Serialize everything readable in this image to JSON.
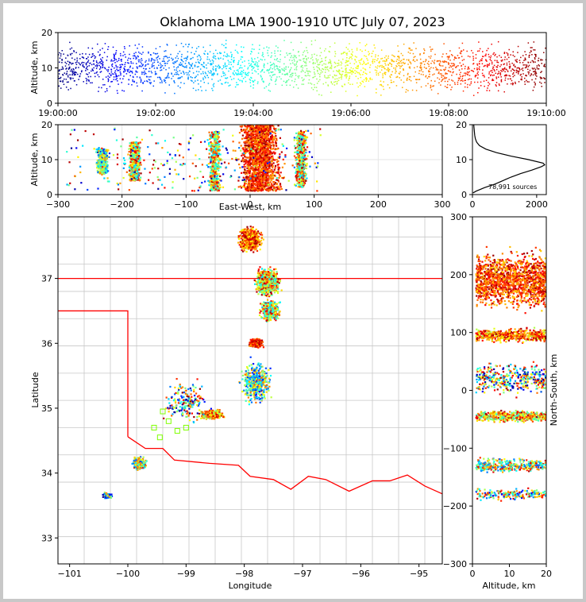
{
  "chart_data": [
    {
      "type": "scatter",
      "panel": "altitude-time",
      "title": "Oklahoma LMA 1900-1910 UTC July 07, 2023",
      "ylabel": "Altitude, km",
      "ylim": [
        0,
        20
      ],
      "xlim": [
        "19:00:00",
        "19:10:00"
      ],
      "xticks": [
        "19:00:00",
        "19:02:00",
        "19:04:00",
        "19:06:00",
        "19:08:00",
        "19:10:00"
      ],
      "yticks": [
        "0",
        "10",
        "20"
      ],
      "color_by": "time",
      "colormap": [
        "#00007f",
        "#0000ff",
        "#007fff",
        "#00ffff",
        "#7fff7f",
        "#ffff00",
        "#ff7f00",
        "#ff0000",
        "#7f0000"
      ]
    },
    {
      "type": "scatter",
      "panel": "east-west-altitude",
      "xlabel": "East-West, km",
      "ylabel": "Altitude, km",
      "xlim": [
        -300,
        300
      ],
      "ylim": [
        0,
        20
      ],
      "xticks": [
        "−300",
        "−200",
        "−100",
        "0",
        "100",
        "200",
        "300"
      ],
      "yticks": [
        "0",
        "10",
        "20"
      ],
      "grid": true,
      "clusters": [
        {
          "x": -230,
          "alt_range": [
            6,
            13
          ],
          "tone": "early"
        },
        {
          "x": -180,
          "alt_range": [
            4,
            15
          ],
          "tone": "mixed"
        },
        {
          "x": -55,
          "alt_range": [
            1,
            18
          ],
          "tone": "mixed"
        },
        {
          "x": 15,
          "alt_range": [
            1,
            20
          ],
          "tone": "late"
        },
        {
          "x": 80,
          "alt_range": [
            2,
            18
          ],
          "tone": "mixed"
        }
      ]
    },
    {
      "type": "line",
      "panel": "altitude-histogram",
      "xlim": [
        0,
        2300
      ],
      "ylim": [
        0,
        20
      ],
      "xticks": [
        "0",
        "2000"
      ],
      "yticks": [
        "0",
        "10",
        "20"
      ],
      "annotation": "78,991 sources",
      "profile": [
        {
          "alt": 0.5,
          "count": 20
        },
        {
          "alt": 1,
          "count": 120
        },
        {
          "alt": 2,
          "count": 380
        },
        {
          "alt": 3,
          "count": 700
        },
        {
          "alt": 4,
          "count": 950
        },
        {
          "alt": 5,
          "count": 1200
        },
        {
          "alt": 6,
          "count": 1500
        },
        {
          "alt": 7,
          "count": 1850
        },
        {
          "alt": 8,
          "count": 2150
        },
        {
          "alt": 8.5,
          "count": 2250
        },
        {
          "alt": 9,
          "count": 2200
        },
        {
          "alt": 10,
          "count": 1750
        },
        {
          "alt": 11,
          "count": 1200
        },
        {
          "alt": 12,
          "count": 750
        },
        {
          "alt": 13,
          "count": 420
        },
        {
          "alt": 14,
          "count": 220
        },
        {
          "alt": 15,
          "count": 130
        },
        {
          "alt": 16,
          "count": 90
        },
        {
          "alt": 17,
          "count": 70
        },
        {
          "alt": 18,
          "count": 60
        },
        {
          "alt": 19,
          "count": 50
        },
        {
          "alt": 20,
          "count": 40
        }
      ]
    },
    {
      "type": "scatter",
      "panel": "plan-view-map",
      "xlabel": "Longitude",
      "ylabel": "Latitude",
      "xlim": [
        -101.2,
        -94.6
      ],
      "ylim": [
        32.6,
        37.95
      ],
      "xticks": [
        "−101",
        "−100",
        "−99",
        "−98",
        "−97",
        "−96",
        "−95"
      ],
      "yticks": [
        "33",
        "34",
        "35",
        "36",
        "37"
      ],
      "state_border_color": "#ff0000",
      "county_line_color": "#c8c8c8",
      "station_marker_color": "#7fff00"
    },
    {
      "type": "scatter",
      "panel": "north-south-altitude",
      "xlabel": "Altitude, km",
      "ylabel": "North-South, km",
      "xlim": [
        0,
        20
      ],
      "ylim": [
        -300,
        300
      ],
      "xticks": [
        "0",
        "10",
        "20"
      ],
      "yticks": [
        "−300",
        "−200",
        "−100",
        "0",
        "100",
        "200",
        "300"
      ]
    }
  ]
}
